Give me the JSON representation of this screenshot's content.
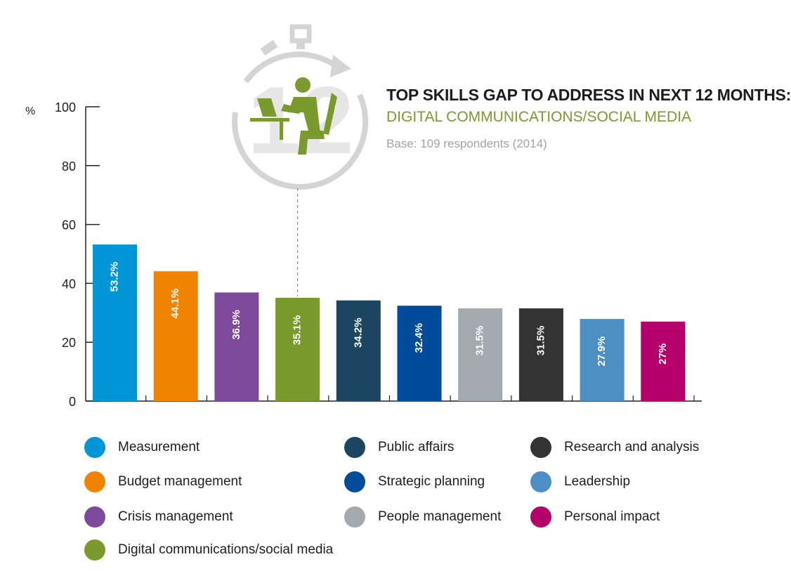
{
  "header": {
    "title": "TOP SKILLS GAP TO ADDRESS IN NEXT 12 MONTHS:",
    "subtitle": "DIGITAL COMMUNICATIONS/SOCIAL MEDIA",
    "base": "Base: 109 respondents (2014)",
    "icon_number": "12"
  },
  "colors": {
    "highlight": "#7a9a2e",
    "icon_ring": "#d4d4d4"
  },
  "chart_data": {
    "type": "bar",
    "ylabel": "%",
    "ylim": [
      0,
      100
    ],
    "yticks": [
      0,
      20,
      40,
      60,
      80,
      100
    ],
    "grid": false,
    "legend_position": "bottom",
    "categories": [
      "Measurement",
      "Budget management",
      "Crisis management",
      "Digital communications/social media",
      "Public affairs",
      "Strategic planning",
      "People management",
      "Research and analysis",
      "Leadership",
      "Personal impact"
    ],
    "values": [
      53.2,
      44.1,
      36.9,
      35.1,
      34.2,
      32.4,
      31.5,
      31.5,
      27.9,
      27
    ],
    "labels": [
      "53.2%",
      "44.1%",
      "36.9%",
      "35.1%",
      "34.2%",
      "32.4%",
      "31.5%",
      "31.5%",
      "27.9%",
      "27%"
    ],
    "colors": [
      "#0096d6",
      "#f08300",
      "#7e4a9c",
      "#7a9a2e",
      "#1b4560",
      "#004b9a",
      "#a2aab0",
      "#333333",
      "#4d8fc3",
      "#b5006b"
    ],
    "highlight_category": "Digital communications/social media"
  }
}
